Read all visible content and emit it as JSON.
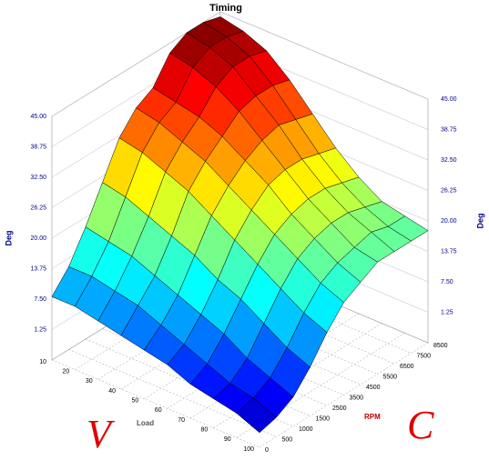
{
  "chart_data": {
    "type": "surface",
    "title": "Timing",
    "z_label": "Deg",
    "x_label": "Load",
    "y_label": "RPM",
    "annotations": [
      "V",
      "C"
    ],
    "load": [
      10,
      20,
      30,
      40,
      50,
      60,
      70,
      80,
      90,
      100
    ],
    "rpm": [
      0,
      500,
      1000,
      1500,
      2500,
      3500,
      4500,
      5500,
      6500,
      7500,
      8500
    ],
    "z": [
      [
        8,
        12,
        18,
        25,
        32,
        36,
        38,
        43,
        45,
        45,
        44
      ],
      [
        8,
        12,
        17,
        24,
        31,
        35,
        37,
        42,
        44,
        44,
        43
      ],
      [
        7,
        11,
        16,
        22,
        29,
        33,
        36,
        40,
        42,
        42,
        41
      ],
      [
        6,
        10,
        14,
        20,
        27,
        31,
        34,
        37,
        38,
        38,
        37
      ],
      [
        5,
        8,
        12,
        18,
        24,
        28,
        31,
        33,
        34,
        33,
        32
      ],
      [
        4,
        6,
        10,
        15,
        21,
        25,
        28,
        29,
        29,
        28,
        27
      ],
      [
        2,
        4,
        8,
        13,
        18,
        22,
        24,
        25,
        25,
        24,
        23
      ],
      [
        1,
        2,
        5,
        10,
        15,
        19,
        21,
        22,
        22,
        21,
        20
      ],
      [
        0,
        1,
        3,
        7,
        12,
        16,
        18,
        19,
        20,
        19,
        19
      ],
      [
        -2,
        -1,
        1,
        5,
        10,
        14,
        16,
        18,
        18,
        18,
        18
      ]
    ],
    "zlim": [
      -5,
      45
    ],
    "zticks": [
      {
        "value": 1.25,
        "label": "1.25"
      },
      {
        "value": 7.5,
        "label": "7.50"
      },
      {
        "value": 13.75,
        "label": "13.75"
      },
      {
        "value": 20,
        "label": "20.00"
      },
      {
        "value": 26.25,
        "label": "26.25"
      },
      {
        "value": 32.5,
        "label": "32.50"
      },
      {
        "value": 38.75,
        "label": "38.75"
      },
      {
        "value": 45,
        "label": "45.00"
      }
    ],
    "colormap": "jet",
    "grid": true
  }
}
